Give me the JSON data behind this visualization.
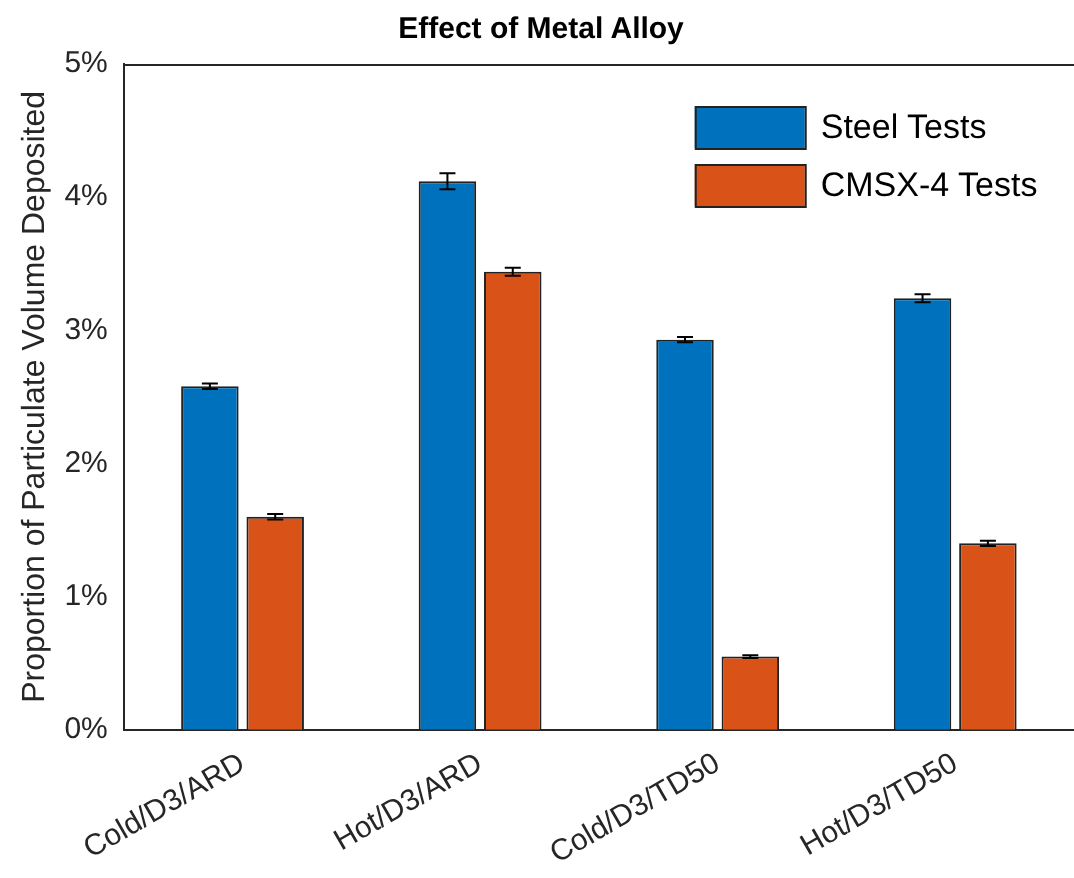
{
  "chart_data": {
    "type": "bar",
    "title": "Effect of Metal Alloy",
    "ylabel": "Proportion of Particulate Volume Deposited",
    "categories": [
      "Cold/D3/ARD",
      "Hot/D3/ARD",
      "Cold/D3/TD50",
      "Hot/D3/TD50"
    ],
    "series": [
      {
        "name": "Steel Tests",
        "color": "#0072bd",
        "values": [
          2.58,
          4.12,
          2.93,
          3.24
        ],
        "errors": [
          0.02,
          0.06,
          0.02,
          0.03
        ]
      },
      {
        "name": "CMSX-4 Tests",
        "color": "#d95319",
        "values": [
          1.6,
          3.44,
          0.55,
          1.4
        ],
        "errors": [
          0.02,
          0.03,
          0.01,
          0.02
        ]
      }
    ],
    "ylim": [
      0,
      5
    ],
    "yticks": [
      {
        "value": 0,
        "label": "0%"
      },
      {
        "value": 1,
        "label": "1%"
      },
      {
        "value": 2,
        "label": "2%"
      },
      {
        "value": 3,
        "label": "3%"
      },
      {
        "value": 4,
        "label": "4%"
      },
      {
        "value": 5,
        "label": "5%"
      }
    ],
    "grid": false,
    "legend": "top right"
  }
}
